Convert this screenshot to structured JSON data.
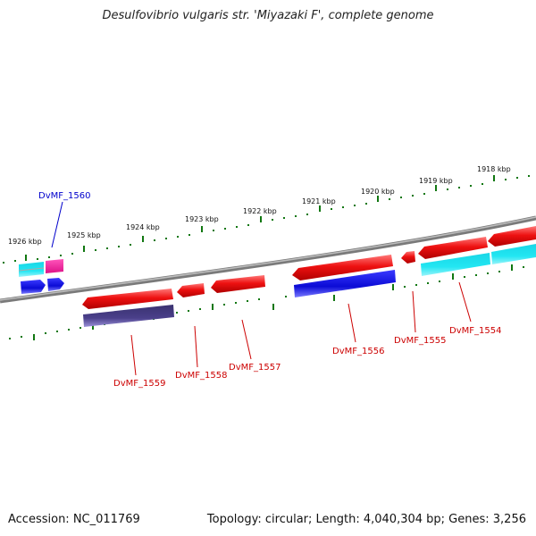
{
  "title": "Desulfovibrio vulgaris str. 'Miyazaki F', complete genome",
  "footer": {
    "accession": "Accession: NC_011769",
    "summary": "Topology: circular; Length: 4,040,304 bp; Genes: 3,256"
  },
  "scale_labels": [
    "1926 kbp",
    "1925 kbp",
    "1924 kbp",
    "1923 kbp",
    "1922 kbp",
    "1921 kbp",
    "1920 kbp",
    "1919 kbp",
    "1918 kbp"
  ],
  "gene_labels": {
    "g1560": "DvMF_1560",
    "g1559": "DvMF_1559",
    "g1558": "DvMF_1558",
    "g1557": "DvMF_1557",
    "g1556": "DvMF_1556",
    "g1555": "DvMF_1555",
    "g1554": "DvMF_1554"
  },
  "colors": {
    "backbone": "#888888",
    "forward_gene": "#ee1111",
    "cds_feature": "#1111dd",
    "rna_feature": "#22c8d8",
    "misc_feature": "#ee2299",
    "purple_feature": "#4a3f8a",
    "tick_green": "#117711",
    "label_blue": "#0000cc",
    "label_red": "#cc0000"
  }
}
